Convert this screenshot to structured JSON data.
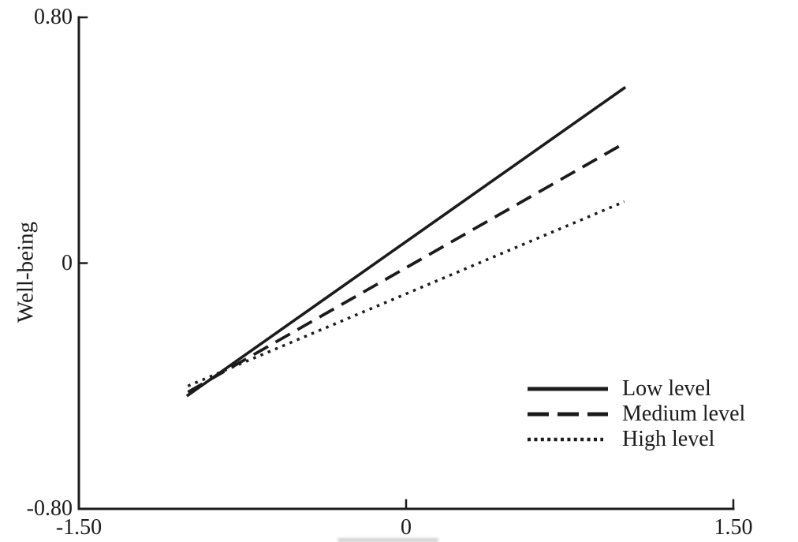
{
  "figure": {
    "background_color": "#ffffff",
    "ink_color": "#1b1b1b",
    "artifacts": {
      "cropped_text_sliver_below_x_axis_zero": true
    }
  },
  "chart_data": {
    "type": "line",
    "title": "",
    "xlabel": "",
    "ylabel": "Well-being",
    "xlim": [
      -1.5,
      1.5
    ],
    "ylim": [
      -0.8,
      0.8
    ],
    "grid": false,
    "legend_position": "inside lower-right",
    "x_ticks": [
      {
        "value": -1.5,
        "label": "-1.50"
      },
      {
        "value": 0,
        "label": "0"
      },
      {
        "value": 1.5,
        "label": "1.50"
      }
    ],
    "y_ticks": [
      {
        "value": 0.8,
        "label": "0.80"
      },
      {
        "value": 0,
        "label": "0"
      },
      {
        "value": -0.8,
        "label": "-0.80"
      }
    ],
    "series": [
      {
        "name": "Low level",
        "style": "solid",
        "x": [
          -1,
          1
        ],
        "y": [
          -0.43,
          0.57
        ]
      },
      {
        "name": "Medium level",
        "style": "dashed",
        "x": [
          -1,
          1
        ],
        "y": [
          -0.42,
          0.39
        ]
      },
      {
        "name": "High level",
        "style": "dotted",
        "x": [
          -1,
          1
        ],
        "y": [
          -0.4,
          0.2
        ]
      }
    ]
  }
}
